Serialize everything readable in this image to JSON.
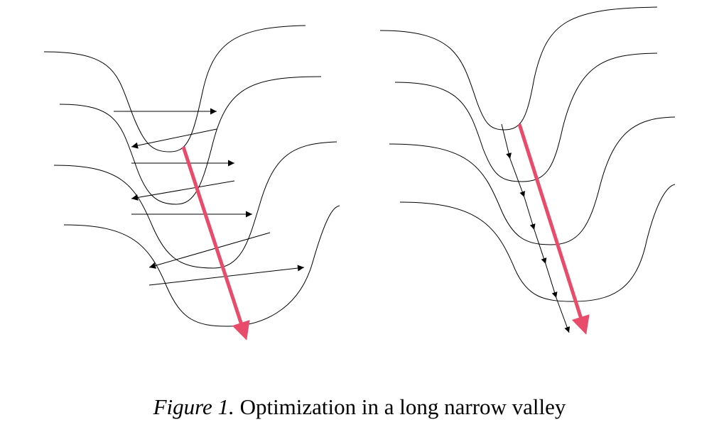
{
  "figure": {
    "caption_label": "Figure 1.",
    "caption_text": "Optimization in a long narrow valley",
    "colors": {
      "gradient_arrow": "#e94b6b",
      "contour": "#000000",
      "step_arrow": "#000000"
    },
    "panels": [
      {
        "name": "oscillating-descent",
        "step_count": 7
      },
      {
        "name": "direct-descent",
        "step_count": 6
      }
    ]
  }
}
